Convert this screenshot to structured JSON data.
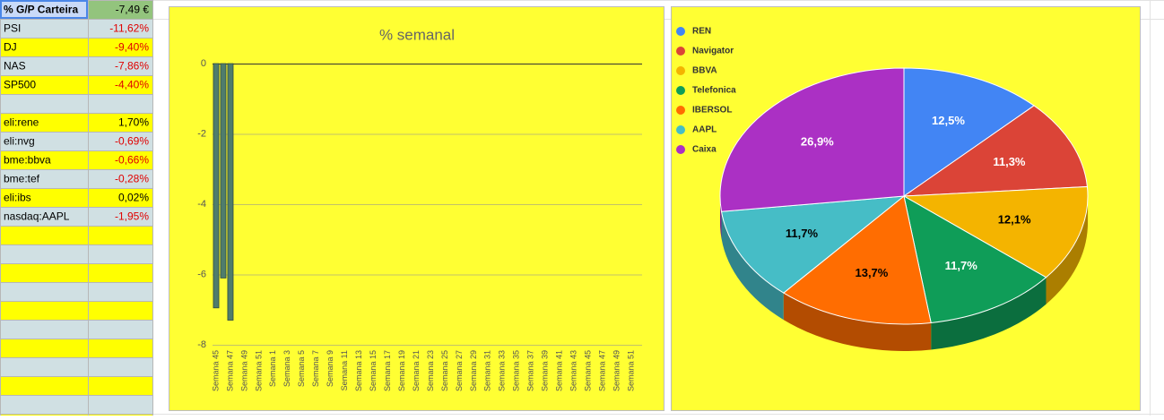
{
  "table": {
    "header": [
      "% G/P Carteira",
      "-7,49 €"
    ],
    "indices": [
      [
        "PSI",
        "-11,62%"
      ],
      [
        "DJ",
        "-9,40%"
      ],
      [
        "NAS",
        "-7,86%"
      ],
      [
        "SP500",
        "-4,40%"
      ]
    ],
    "stocks": [
      [
        "eli:rene",
        "1,70%"
      ],
      [
        "eli:nvg",
        "-0,69%"
      ],
      [
        "bme:bbva",
        "-0,66%"
      ],
      [
        "bme:tef",
        "-0,28%"
      ],
      [
        "eli:ibs",
        "0,02%"
      ],
      [
        "nasdaq:AAPL",
        "-1,95%"
      ]
    ]
  },
  "chart_data": [
    {
      "type": "bar",
      "title": "% semanal",
      "categories": [
        "Semana 45",
        null,
        "Semana 47",
        null,
        "Semana 49",
        null,
        "Semana 51",
        null,
        "Semana 1",
        null,
        "Semana 3",
        null,
        "Semana 5",
        null,
        "Semana 7",
        null,
        "Semana 9",
        null,
        "Semana 11",
        null,
        "Semana 13",
        null,
        "Semana 15",
        null,
        "Semana 17",
        null,
        "Semana 19",
        null,
        "Semana 21",
        null,
        "Semana 23",
        null,
        "Semana 25",
        null,
        "Semana 27",
        null,
        "Semana 29",
        null,
        "Semana 31",
        null,
        "Semana 33",
        null,
        "Semana 35",
        null,
        "Semana 37",
        null,
        "Semana 39",
        null,
        "Semana 41",
        null,
        "Semana 43",
        null,
        "Semana 45",
        null,
        "Semana 47",
        null,
        "Semana 49",
        null,
        "Semana 51",
        null
      ],
      "values": [
        -6.95,
        -6.1,
        -7.3,
        null,
        null,
        null,
        null,
        null,
        null,
        null,
        null,
        null,
        null,
        null,
        null,
        null,
        null,
        null,
        null,
        null,
        null,
        null,
        null,
        null,
        null,
        null,
        null,
        null,
        null,
        null,
        null,
        null,
        null,
        null,
        null,
        null,
        null,
        null,
        null,
        null,
        null,
        null,
        null,
        null,
        null,
        null,
        null,
        null,
        null,
        null,
        null,
        null,
        null,
        null,
        null,
        null,
        null,
        null,
        null,
        null
      ],
      "color": "#4f7d6c",
      "ylim": [
        -8,
        0
      ],
      "yticks": [
        0,
        -2,
        -4,
        -6,
        -8
      ],
      "grid": true
    },
    {
      "type": "pie",
      "categories": [
        "REN",
        "Navigator",
        "BBVA",
        "Telefonica",
        "IBERSOL",
        "AAPL",
        "Caixa"
      ],
      "values": [
        12.5,
        11.3,
        12.1,
        11.7,
        13.7,
        11.7,
        26.9
      ],
      "value_labels": [
        "12,5%",
        "11,3%",
        "12,1%",
        "11,7%",
        "13,7%",
        "11,7%",
        "26,9%"
      ],
      "colors": [
        "#4285f4",
        "#db4437",
        "#f4b400",
        "#0f9d58",
        "#ff6d01",
        "#46bdc6",
        "#ab30c4"
      ],
      "legend": "top-left",
      "three_d": true
    }
  ]
}
